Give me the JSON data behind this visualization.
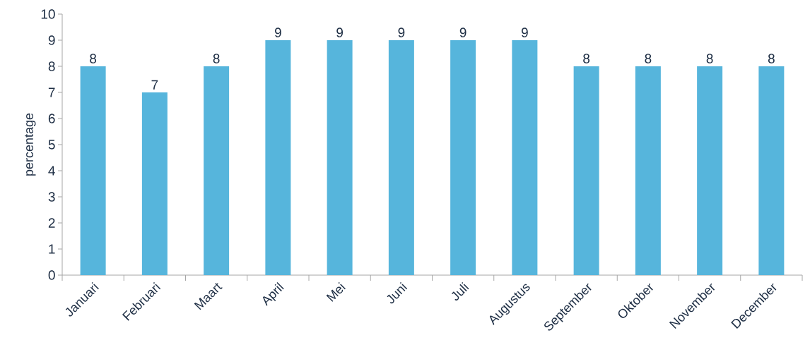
{
  "chart_data": {
    "type": "bar",
    "ylabel": "percentage",
    "categories": [
      "Januari",
      "Februari",
      "Maart",
      "April",
      "Mei",
      "Juni",
      "Juli",
      "Augustus",
      "September",
      "Oktober",
      "November",
      "December"
    ],
    "values": [
      8,
      7,
      8,
      9,
      9,
      9,
      9,
      9,
      8,
      8,
      8,
      8
    ],
    "color": "#56b5dc",
    "ylim": [
      0,
      10
    ],
    "yticks": [
      0,
      1,
      2,
      3,
      4,
      5,
      6,
      7,
      8,
      9,
      10
    ],
    "grid": false,
    "data_labels": true
  }
}
